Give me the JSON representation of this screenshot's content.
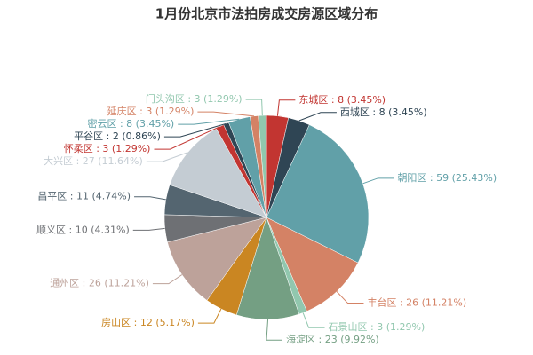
{
  "chart_data": {
    "type": "pie",
    "title": "1月份北京市法拍房成交房源区域分布",
    "categories": [
      "东城区",
      "西城区",
      "朝阳区",
      "丰台区",
      "石景山区",
      "海淀区",
      "房山区",
      "通州区",
      "顺义区",
      "昌平区",
      "大兴区",
      "怀柔区",
      "平谷区",
      "密云区",
      "延庆区",
      "门头沟区"
    ],
    "values": [
      8,
      8,
      59,
      26,
      3,
      23,
      12,
      26,
      10,
      11,
      27,
      3,
      2,
      8,
      3,
      3
    ],
    "value_labels": [
      "东城区 : 8 (3.45%)",
      "西城区 : 8 (3.45%)",
      "朝阳区 : 59 (25.43%)",
      "丰台区 : 26 (11.21%)",
      "石景山区 : 3 (1.29%)",
      "海淀区 : 23 (9.92%)",
      "房山区 : 12 (5.17%)",
      "通州区 : 26 (11.21%)",
      "顺义区 : 10 (4.31%)",
      "昌平区 : 11 (4.74%)",
      "大兴区 : 27 (11.64%)",
      "怀柔区 : 3 (1.29%)",
      "平谷区 : 2 (0.86%)",
      "密云区 : 8 (3.45%)",
      "延庆区 : 3 (1.29%)",
      "门头沟区 : 3 (1.29%)"
    ],
    "colors": [
      "#c23531",
      "#2f4554",
      "#61a0a8",
      "#d48265",
      "#91c7ae",
      "#749f83",
      "#ca8622",
      "#bda29a",
      "#6e7074",
      "#546570",
      "#c4ccd3",
      "#c23531",
      "#2f4554",
      "#61a0a8",
      "#d48265",
      "#91c7ae"
    ]
  }
}
